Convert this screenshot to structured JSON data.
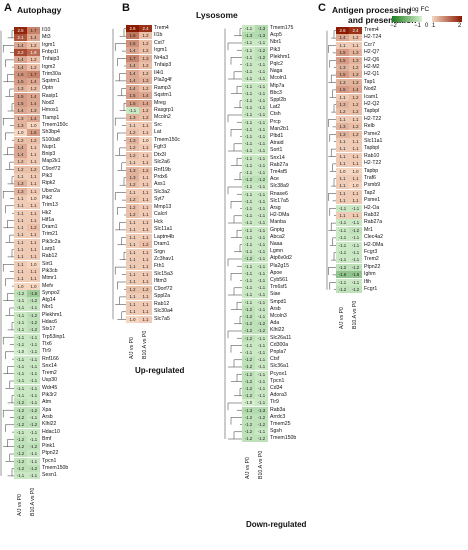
{
  "panels": [
    {
      "letter": "A",
      "title": [
        "Autophagy"
      ],
      "columns": [
        "A/J vs P0",
        "B10.A vs P0"
      ],
      "rows": [
        [
          "Il10",
          2.5,
          1.7
        ],
        [
          "Mt3",
          2.1,
          1.4
        ],
        [
          "Irgm1",
          1.4,
          1.2
        ],
        [
          "Fnbp1l",
          2.2,
          1.9
        ],
        [
          "Tnfaip3",
          1.4,
          1.2
        ],
        [
          "Irgm2",
          1.4,
          1.2
        ],
        [
          "Trim30a",
          1.6,
          1.7
        ],
        [
          "Sqstm1",
          1.5,
          1.4
        ],
        [
          "Optn",
          1.3,
          1.2
        ],
        [
          "Rasip1",
          1.5,
          1.4
        ],
        [
          "Nod2",
          1.5,
          1.4
        ],
        [
          "Hmox1",
          1.4,
          1.3
        ],
        [
          "Tlamp1",
          1.3,
          1.4
        ],
        [
          "Tmem150c",
          1.3,
          1.0
        ],
        [
          "Sh3bp4",
          1.0,
          1.5
        ],
        [
          "S100a8",
          1.2,
          1.2
        ],
        [
          "Nupr1",
          1.4,
          1.1
        ],
        [
          "Bnip3",
          1.4,
          1.1
        ],
        [
          "Map2k1",
          1.2,
          1.1
        ],
        [
          "C9orf72",
          1.2,
          1.2
        ],
        [
          "Pik3",
          1.1,
          1.1
        ],
        [
          "Ripk2",
          1.3,
          1.1
        ],
        [
          "Ubxn2a",
          1.3,
          1.1
        ],
        [
          "Pik2",
          1.1,
          1.0
        ],
        [
          "Trim13",
          1.1,
          1.1
        ],
        [
          "Hk2",
          1.1,
          1.1
        ],
        [
          "Hif1a",
          1.1,
          1.1
        ],
        [
          "Dram1",
          1.1,
          1.2
        ],
        [
          "Trim21",
          1.1,
          1.1
        ],
        [
          "Pik3c2a",
          1.1,
          1.1
        ],
        [
          "Larp1",
          1.1,
          1.1
        ],
        [
          "Rab12",
          1.1,
          1.1
        ],
        [
          "Sirt1",
          1.1,
          1.0
        ],
        [
          "Pik3cb",
          1.1,
          1.1
        ],
        [
          "Mtmr1",
          1.1,
          1.1
        ],
        [
          "Mefv",
          1.0,
          1.0
        ],
        [
          "Synpo2",
          -1.2,
          -1.5
        ],
        [
          "Atg14",
          -1.1,
          -1.2
        ],
        [
          "Nbr1",
          -1.1,
          -1.1
        ],
        [
          "Plekhm1",
          -1.1,
          -1.2
        ],
        [
          "Hdac6",
          -1.1,
          -1.2
        ],
        [
          "Stx17",
          -1.1,
          -1.2
        ],
        [
          "Trp53inp1",
          -1.1,
          -1.1
        ],
        [
          "Tlx6",
          -1.1,
          -1.1
        ],
        [
          "Tlr9",
          -1.0,
          -1.1
        ],
        [
          "Rnf166",
          -1.1,
          -1.1
        ],
        [
          "Snx14",
          -1.1,
          -1.1
        ],
        [
          "Trem2",
          -1.1,
          -1.1
        ],
        [
          "Usp30",
          -1.1,
          -1.1
        ],
        [
          "Wdr45",
          -1.1,
          -1.1
        ],
        [
          "Pik3r2",
          -1.1,
          -1.1
        ],
        [
          "Atm",
          -1.2,
          -1.1
        ],
        [
          "Xpa",
          -1.2,
          -1.2
        ],
        [
          "Arsb",
          -1.2,
          -1.1
        ],
        [
          "Klhl22",
          -1.2,
          -1.2
        ],
        [
          "Hdac10",
          -1.1,
          -1.1
        ],
        [
          "Bmf",
          -1.2,
          -1.1
        ],
        [
          "Pink1",
          -1.2,
          -1.2
        ],
        [
          "Ptpn22",
          -1.2,
          -1.1
        ],
        [
          "Tpcn1",
          -1.2,
          -1.1
        ],
        [
          "Tmem150b",
          -1.2,
          -1.2
        ],
        [
          "Sesn1",
          -1.1,
          -1.1
        ]
      ]
    },
    {
      "letter": "B",
      "title": [
        "Lysosome"
      ],
      "columns": [
        "A/J vs P0",
        "B10.A vs P0"
      ],
      "sub_up": "Up-regulated",
      "sub_down": "Down-regulated",
      "rows_up": [
        [
          "Trem4",
          2.6,
          2.4
        ],
        [
          "Il1b",
          1.8,
          1.2
        ],
        [
          "Cst7",
          1.6,
          1.2
        ],
        [
          "Irgm1",
          1.4,
          1.2
        ],
        [
          "Nr4a3",
          1.7,
          1.3
        ],
        [
          "Tnfaip3",
          1.4,
          1.2
        ],
        [
          "Il4i1",
          1.4,
          1.2
        ],
        [
          "Pla2g4f",
          1.4,
          1.3
        ],
        [
          "Ramp3",
          1.4,
          1.2
        ],
        [
          "Sqstm1",
          1.5,
          1.4
        ],
        [
          "Mreg",
          1.5,
          1.4
        ],
        [
          "Rasgrp1",
          -1.1,
          1.2
        ],
        [
          "Mcoln2",
          1.3,
          1.2
        ],
        [
          "Src",
          1.1,
          1.1
        ],
        [
          "Lat",
          1.2,
          1.1
        ],
        [
          "Tmem150c",
          1.3,
          1.0
        ],
        [
          "Fgfr3",
          1.2,
          1.1
        ],
        [
          "Dtx3l",
          1.2,
          1.1
        ],
        [
          "Slc2a6",
          1.1,
          1.1
        ],
        [
          "Rnf19b",
          1.3,
          1.2
        ],
        [
          "Prdx6",
          1.3,
          1.1
        ],
        [
          "Ass1",
          1.2,
          1.1
        ],
        [
          "Slc3a2",
          1.1,
          1.1
        ],
        [
          "Syt7",
          1.2,
          1.1
        ],
        [
          "Mmp13",
          1.2,
          1.1
        ],
        [
          "Calcrl",
          1.2,
          1.1
        ],
        [
          "Hck",
          1.1,
          1.1
        ],
        [
          "Slc11a1",
          1.1,
          1.1
        ],
        [
          "Laptm4b",
          1.1,
          1.1
        ],
        [
          "Dram1",
          1.1,
          1.2
        ],
        [
          "Srgn",
          1.1,
          1.1
        ],
        [
          "Zc3hav1",
          1.1,
          1.1
        ],
        [
          "Fth1",
          1.1,
          1.1
        ],
        [
          "Slc15a3",
          1.1,
          1.1
        ],
        [
          "Ifitm3",
          1.1,
          1.1
        ],
        [
          "C9orf72",
          1.2,
          1.2
        ],
        [
          "Sppl2a",
          1.1,
          1.1
        ],
        [
          "Rab12",
          1.1,
          1.1
        ],
        [
          "Slc30a4",
          1.1,
          1.1
        ],
        [
          "Slc7a5",
          1.0,
          1.1
        ]
      ],
      "rows_down": [
        [
          "Tmem175",
          -1.1,
          -1.3
        ],
        [
          "Acp5",
          -1.3,
          -1.3
        ],
        [
          "Nbr1",
          -1.1,
          -1.1
        ],
        [
          "Pik3",
          -1.1,
          -1.2
        ],
        [
          "Plekhm1",
          -1.1,
          -1.2
        ],
        [
          "Pqlc2",
          -1.1,
          -1.1
        ],
        [
          "Naga",
          -1.1,
          -1.1
        ],
        [
          "Mcoln1",
          -1.1,
          -1.1
        ],
        [
          "Mtp7a",
          -1.1,
          -1.1
        ],
        [
          "Bbc3",
          -1.1,
          -1.1
        ],
        [
          "Sppl2b",
          -1.1,
          -1.1
        ],
        [
          "Lat2",
          -1.1,
          -1.1
        ],
        [
          "Ctsh",
          -1.1,
          -1.1
        ],
        [
          "Prcp",
          -1.1,
          -1.1
        ],
        [
          "Man2b1",
          -1.1,
          -1.1
        ],
        [
          "Plbd1",
          -1.1,
          -1.1
        ],
        [
          "Atraid",
          -1.1,
          -1.1
        ],
        [
          "Sort1",
          -1.1,
          -1.1
        ],
        [
          "Snx14",
          -1.1,
          -1.1
        ],
        [
          "Rab27a",
          -1.1,
          -1.1
        ],
        [
          "Tm4sf5",
          -1.1,
          -1.1
        ],
        [
          "Ace",
          -1.2,
          -1.2
        ],
        [
          "Slc38a9",
          -1.1,
          -1.1
        ],
        [
          "Rnase6",
          -1.1,
          -1.1
        ],
        [
          "Slc17a5",
          -1.1,
          -1.1
        ],
        [
          "Arsg",
          -1.1,
          -1.1
        ],
        [
          "H2-DMa",
          -1.1,
          -1.1
        ],
        [
          "Manba",
          -1.1,
          -1.1
        ],
        [
          "Gnptg",
          -1.1,
          -1.1
        ],
        [
          "Abca2",
          -1.1,
          -1.1
        ],
        [
          "Naaa",
          -1.1,
          -1.1
        ],
        [
          "Lgmn",
          -1.1,
          -1.1
        ],
        [
          "Atp6v0d2",
          -1.2,
          -1.1
        ],
        [
          "Pla2g15",
          -1.1,
          -1.1
        ],
        [
          "Apoe",
          -1.1,
          -1.1
        ],
        [
          "Cyb561",
          -1.1,
          -1.1
        ],
        [
          "Tm6sf1",
          -1.1,
          -1.1
        ],
        [
          "Siae",
          -1.1,
          -1.1
        ],
        [
          "Smpd1",
          -1.1,
          -1.1
        ],
        [
          "Arsb",
          -1.2,
          -1.1
        ],
        [
          "Mcoln3",
          -1.2,
          -1.1
        ],
        [
          "Ada",
          -1.2,
          -1.2
        ],
        [
          "Klhl22",
          -1.2,
          -1.2
        ],
        [
          "Slc26a11",
          -1.2,
          -1.1
        ],
        [
          "Cd300a",
          -1.1,
          -1.1
        ],
        [
          "Pnpla7",
          -1.1,
          -1.1
        ],
        [
          "Ctsf",
          -1.2,
          -1.1
        ],
        [
          "Slc36a1",
          -1.2,
          -1.1
        ],
        [
          "Pcyox1",
          -1.2,
          -1.1
        ],
        [
          "Tpcn1",
          -1.2,
          -1.1
        ],
        [
          "Cd34",
          -1.2,
          -1.1
        ],
        [
          "Adora3",
          -1.2,
          -1.1
        ],
        [
          "Tlr9",
          -1.0,
          -1.1
        ],
        [
          "Rab3a",
          -1.3,
          -1.3
        ],
        [
          "Arrdc3",
          -1.2,
          -1.2
        ],
        [
          "Tmem25",
          -1.2,
          -1.2
        ],
        [
          "Sgsh",
          -1.2,
          -1.1
        ],
        [
          "Tmem150b",
          -1.2,
          -1.2
        ]
      ]
    },
    {
      "letter": "C",
      "title": [
        "Antigen processing",
        "and presentation"
      ],
      "columns": [
        "A/J vs P0",
        "B10.A vs P0"
      ],
      "rows": [
        [
          "Trem4",
          2.6,
          2.4
        ],
        [
          "H2-T24",
          1.4,
          1.2
        ],
        [
          "Ccr7",
          1.1,
          1.1
        ],
        [
          "H2-Q7",
          1.5,
          1.3
        ],
        [
          "H2-Q6",
          1.5,
          1.3
        ],
        [
          "H2-M2",
          1.3,
          1.2
        ],
        [
          "H2-Q1",
          1.5,
          1.3
        ],
        [
          "Tap1",
          1.3,
          1.3
        ],
        [
          "Nod2",
          1.5,
          1.4
        ],
        [
          "Icam1",
          1.1,
          1.2
        ],
        [
          "H2-Q2",
          1.3,
          1.2
        ],
        [
          "Tapbpl",
          1.2,
          1.2
        ],
        [
          "H2-T22",
          1.1,
          1.1
        ],
        [
          "Relb",
          1.3,
          1.2
        ],
        [
          "Psme2",
          1.3,
          1.2
        ],
        [
          "Slc11a1",
          1.1,
          1.1
        ],
        [
          "Tapbpl",
          1.1,
          1.1
        ],
        [
          "Rab10",
          1.1,
          1.1
        ],
        [
          "H2-T22",
          1.1,
          1.1
        ],
        [
          "Tapbp",
          1.0,
          1.0
        ],
        [
          "Traf6",
          1.1,
          1.1
        ],
        [
          "Psmb9",
          1.1,
          1.0
        ],
        [
          "Tap2",
          1.1,
          1.1
        ],
        [
          "Psme1",
          1.1,
          1.1
        ],
        [
          "H2-Oa",
          -1.1,
          -1.1
        ],
        [
          "Rab32",
          1.1,
          1.1
        ],
        [
          "Rab27a",
          -1.1,
          -1.1
        ],
        [
          "Mr1",
          -1.1,
          -1.2
        ],
        [
          "Clec4a2",
          -1.1,
          -1.1
        ],
        [
          "H2-DMa",
          -1.1,
          -1.1
        ],
        [
          "Fcgr3",
          -1.1,
          -1.1
        ],
        [
          "Trem2",
          -1.1,
          -1.1
        ],
        [
          "Ptpn22",
          -1.2,
          -1.2
        ],
        [
          "Ighm",
          -1.6,
          -1.6
        ],
        [
          "Ifih",
          -1.1,
          -1.1
        ],
        [
          "Fcgr1",
          -1.2,
          -1.2
        ]
      ]
    }
  ],
  "legend": {
    "title": "log FC",
    "ticks": [
      "−2",
      "−1",
      "0",
      "1",
      "2"
    ],
    "colors": {
      "neg_strong": "#1e7d1e",
      "neg_light": "#d6efd0",
      "zero": "#ffffff",
      "pos_light": "#f6d6c0",
      "pos_strong": "#8b1a00"
    }
  }
}
